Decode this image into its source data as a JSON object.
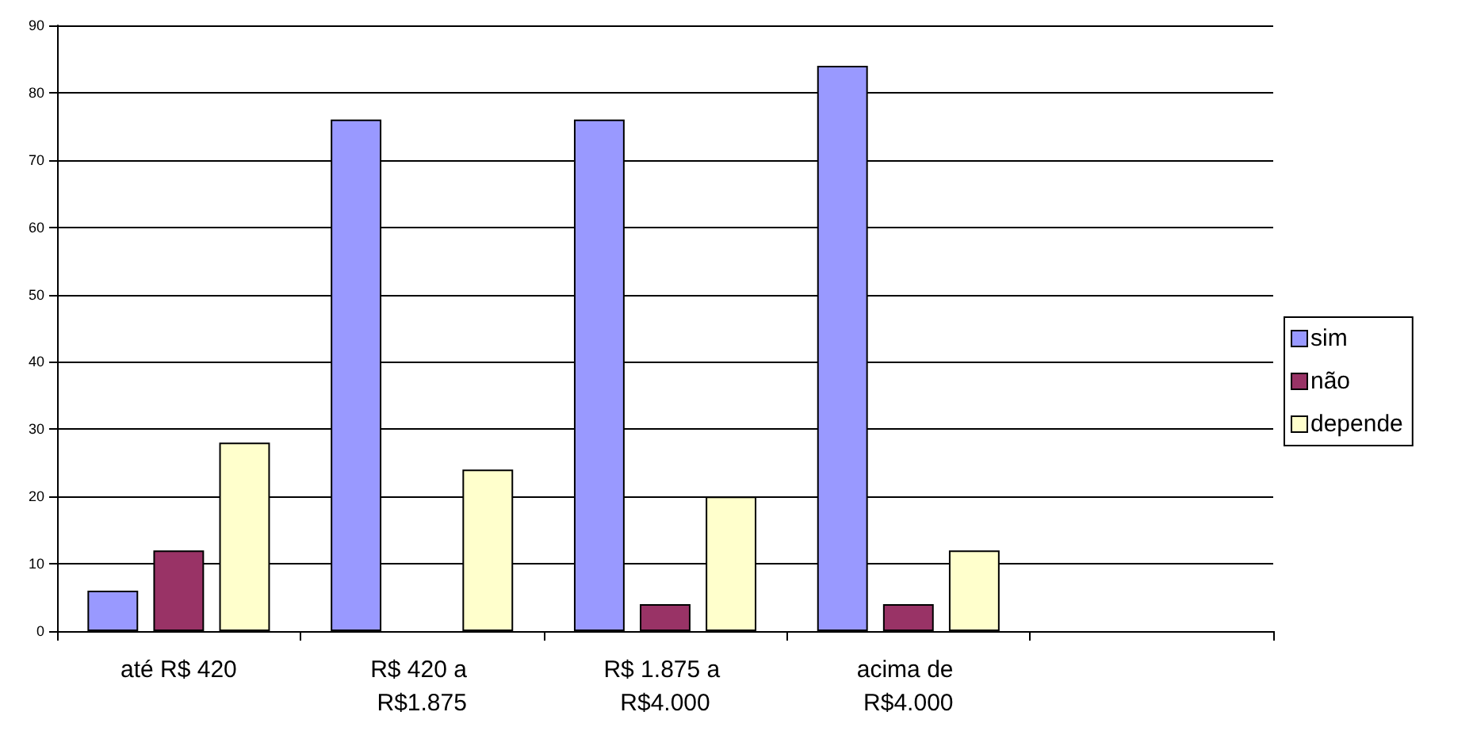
{
  "chart_data": {
    "type": "bar",
    "categories": [
      "até R$ 420",
      "R$ 420 a R$1.875",
      "R$ 1.875 a R$4.000",
      "acima de R$4.000",
      null
    ],
    "series": [
      {
        "name": "sim",
        "color": "#9999ff",
        "values": [
          6,
          76,
          76,
          84,
          null
        ]
      },
      {
        "name": "não",
        "color": "#993366",
        "values": [
          12,
          null,
          4,
          4,
          null
        ]
      },
      {
        "name": "depende",
        "color": "#ffffcc",
        "values": [
          28,
          24,
          20,
          12,
          null
        ]
      }
    ],
    "ylim": [
      0,
      90
    ],
    "yticks": [
      0,
      10,
      20,
      30,
      40,
      50,
      60,
      70,
      80,
      90
    ],
    "grid": "y",
    "legend": "right"
  }
}
